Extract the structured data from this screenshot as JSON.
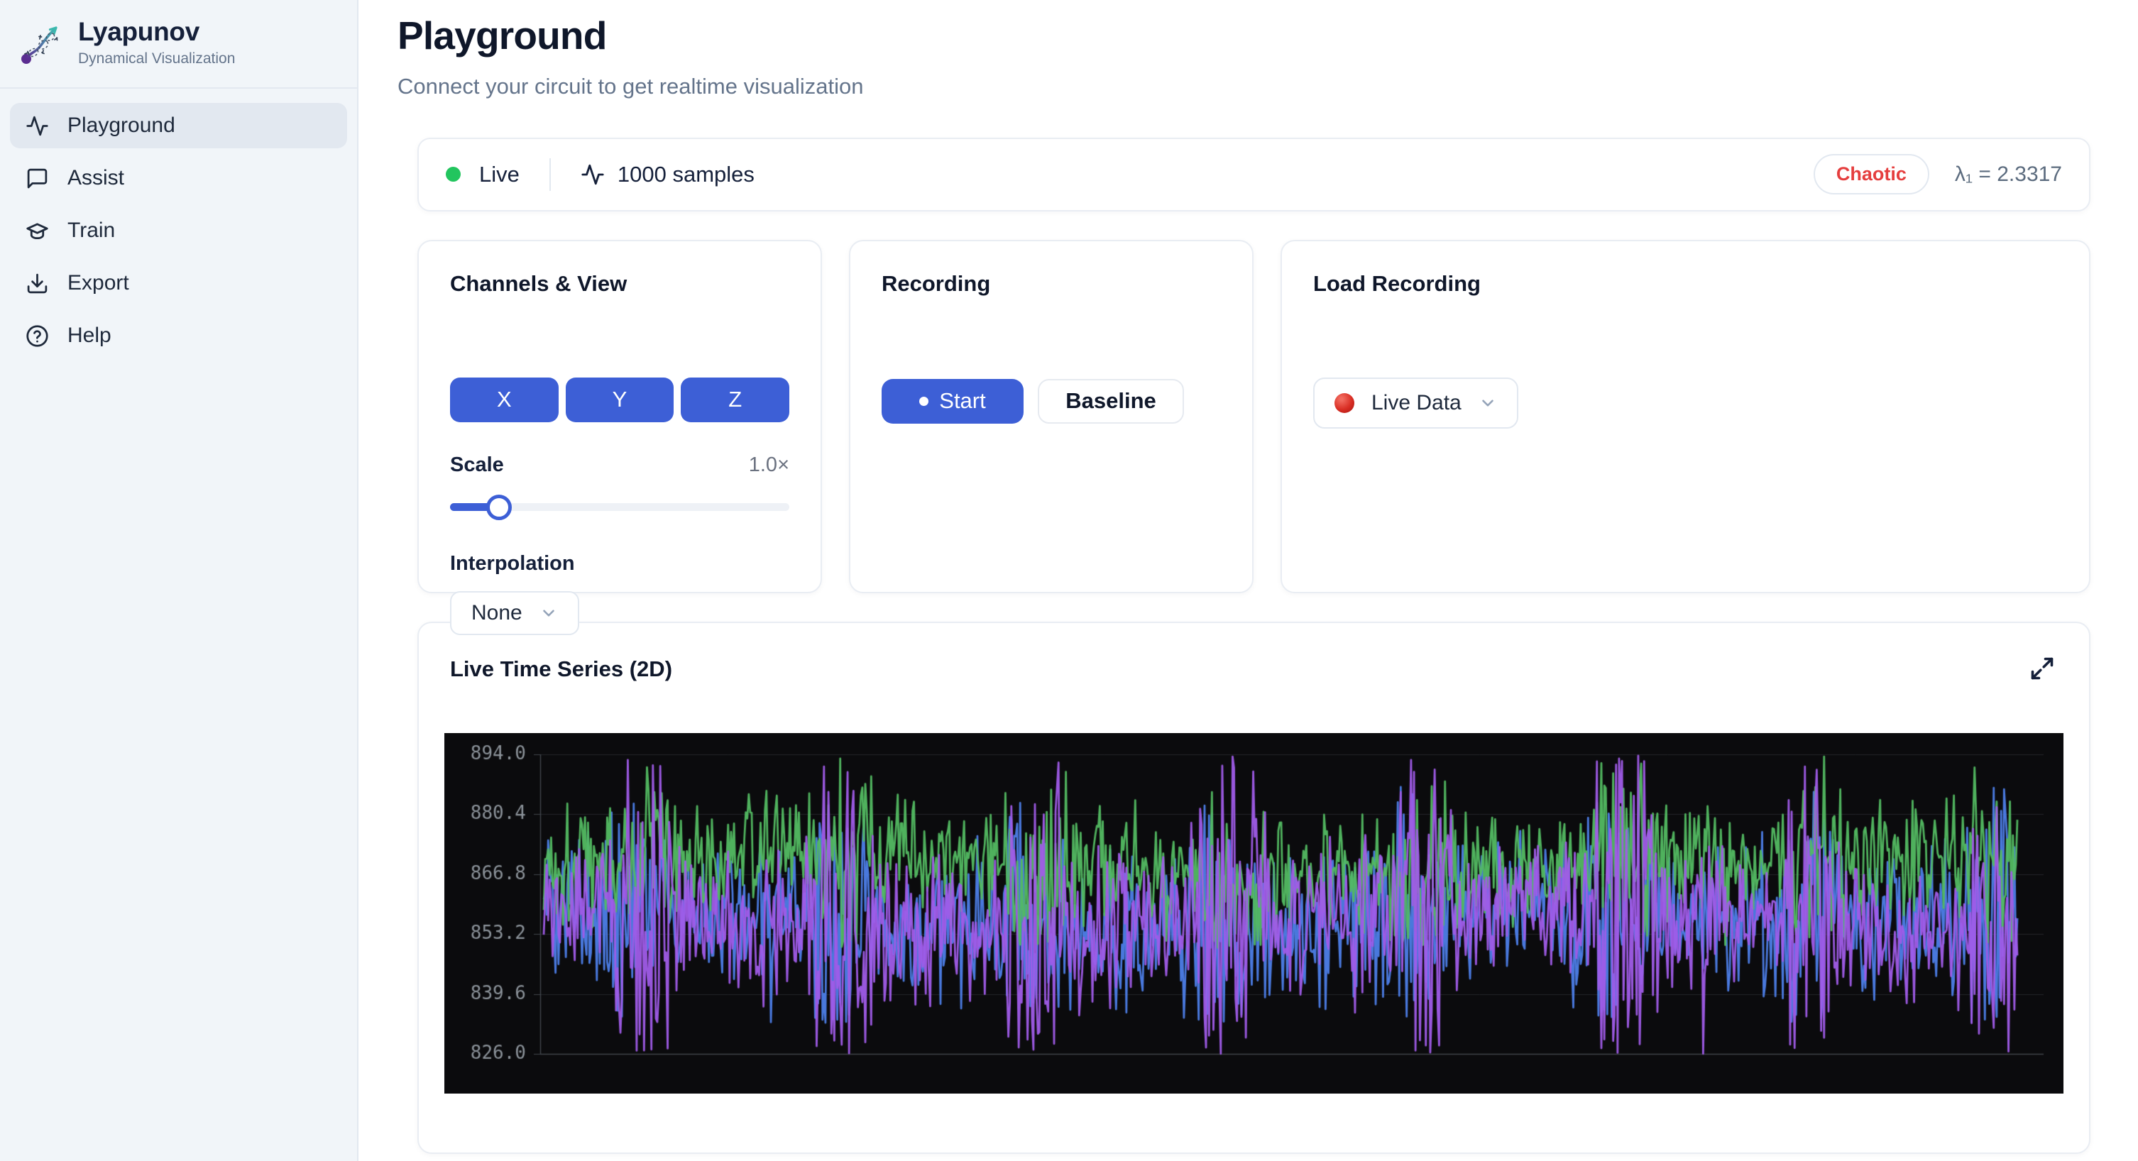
{
  "app": {
    "name": "Lyapunov",
    "tagline": "Dynamical Visualization"
  },
  "sidebar": {
    "items": [
      {
        "label": "Playground",
        "icon": "activity-icon",
        "active": true
      },
      {
        "label": "Assist",
        "icon": "message-icon",
        "active": false
      },
      {
        "label": "Train",
        "icon": "graduation-cap-icon",
        "active": false
      },
      {
        "label": "Export",
        "icon": "download-icon",
        "active": false
      },
      {
        "label": "Help",
        "icon": "help-circle-icon",
        "active": false
      }
    ]
  },
  "header": {
    "title": "Playground",
    "subtitle": "Connect your circuit to get realtime visualization"
  },
  "status_bar": {
    "live_label": "Live",
    "live_dot_color": "#22c55e",
    "samples_label": "1000 samples",
    "regime_badge": "Chaotic",
    "regime_color": "#e53e3e",
    "lyapunov": "λ₁ = 2.3317"
  },
  "cards": {
    "channels": {
      "title": "Channels & View",
      "channel_buttons": [
        "X",
        "Y",
        "Z"
      ],
      "accent_color": "#3d5fd6",
      "scale_label": "Scale",
      "scale_value": "1.0×",
      "scale_fraction": 0.145,
      "interpolation_label": "Interpolation",
      "interpolation_value": "None"
    },
    "recording": {
      "title": "Recording",
      "start_label": "Start",
      "baseline_label": "Baseline"
    },
    "load": {
      "title": "Load Recording",
      "select_value": "Live Data",
      "select_icon": "red-circle-icon"
    }
  },
  "chart_card": {
    "title": "Live Time Series (2D)"
  },
  "chart_data": {
    "type": "line",
    "title": "Live Time Series (2D)",
    "samples": 1000,
    "x_range": [
      0,
      1000
    ],
    "ylim": [
      826.0,
      894.0
    ],
    "y_ticks": [
      894.0,
      880.4,
      866.8,
      853.2,
      839.6,
      826.0
    ],
    "x_tick_labels": [],
    "grid": true,
    "legend_position": "none",
    "background": "#0b0b0d",
    "axis_color": "#3f434a",
    "grid_color": "#232529",
    "tick_label_color": "#8b9299",
    "series": [
      {
        "name": "X",
        "color": "#53bb62",
        "approx_mean": 870,
        "approx_min": 851,
        "approx_max": 894
      },
      {
        "name": "Y",
        "color": "#4d7ee8",
        "approx_mean": 856,
        "approx_min": 833,
        "approx_max": 887
      },
      {
        "name": "Z",
        "color": "#a05ce8",
        "approx_mean": 856,
        "approx_min": 826,
        "approx_max": 894
      }
    ],
    "synthesis": {
      "seed": 1337,
      "n": 1000,
      "burst_period": 131,
      "params": [
        {
          "base": 869,
          "noise": 7.5,
          "burst_amp": 5,
          "phase": 4.2,
          "min": 850,
          "max": 894
        },
        {
          "base": 856,
          "noise": 9,
          "burst_amp": 8,
          "phase": 4.8,
          "min": 833,
          "max": 887
        },
        {
          "base": 856,
          "noise": 9,
          "burst_amp": 17,
          "phase": 4.4,
          "min": 826,
          "max": 894
        }
      ],
      "draw_order": [
        1,
        0,
        2
      ]
    }
  }
}
